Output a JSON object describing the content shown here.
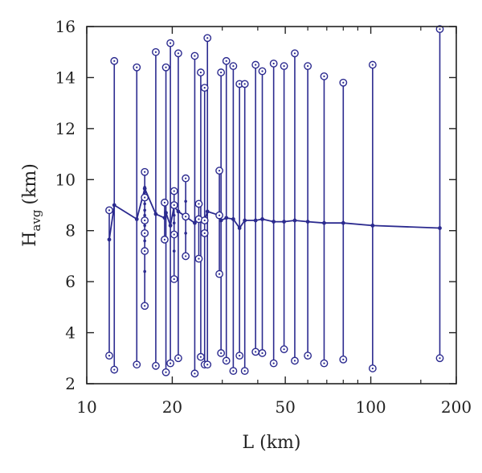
{
  "chart_data": {
    "type": "line",
    "xlabel": "L (km)",
    "ylabel": {
      "main": "H",
      "sub": "avg",
      "unit": "(km)"
    },
    "x_scale": "log",
    "xlim": [
      10,
      200
    ],
    "ylim": [
      2,
      16
    ],
    "x_ticks": [
      10,
      20,
      50,
      100,
      200
    ],
    "y_ticks": [
      2,
      4,
      6,
      8,
      10,
      12,
      14,
      16
    ],
    "grid": false,
    "color": "#2b2a8f",
    "ranges": [
      {
        "x": 12.0,
        "min": 3.1,
        "max": 8.8,
        "mean": 7.65
      },
      {
        "x": 12.5,
        "min": 2.55,
        "max": 14.65,
        "mean": 9.0
      },
      {
        "x": 15.0,
        "min": 2.75,
        "max": 14.4,
        "mean": 8.45
      },
      {
        "x": 16.0,
        "min": 5.05,
        "max": 10.3,
        "mean": 9.65
      },
      {
        "x": 17.5,
        "min": 2.7,
        "max": 15.0,
        "mean": 8.65
      },
      {
        "x": 18.8,
        "min": 7.65,
        "max": 9.1,
        "mean": 8.5
      },
      {
        "x": 19.0,
        "min": 2.45,
        "max": 14.4,
        "mean": 8.7
      },
      {
        "x": 19.7,
        "min": 2.8,
        "max": 15.35,
        "mean": 8.2
      },
      {
        "x": 20.3,
        "min": 6.1,
        "max": 9.55,
        "mean": 8.95
      },
      {
        "x": 21.0,
        "min": 3.0,
        "max": 14.95,
        "mean": 8.75
      },
      {
        "x": 22.3,
        "min": 7.0,
        "max": 10.05,
        "mean": 8.55
      },
      {
        "x": 24.0,
        "min": 2.4,
        "max": 14.85,
        "mean": 8.3
      },
      {
        "x": 24.8,
        "min": 6.9,
        "max": 9.05,
        "mean": 8.45
      },
      {
        "x": 25.2,
        "min": 3.05,
        "max": 14.2,
        "mean": 8.4
      },
      {
        "x": 26.0,
        "min": 2.75,
        "max": 13.6,
        "mean": 8.4
      },
      {
        "x": 26.6,
        "min": 2.75,
        "max": 15.55,
        "mean": 8.75
      },
      {
        "x": 29.3,
        "min": 6.3,
        "max": 10.35,
        "mean": 8.6
      },
      {
        "x": 29.7,
        "min": 3.2,
        "max": 14.2,
        "mean": 8.4
      },
      {
        "x": 31.0,
        "min": 2.9,
        "max": 14.65,
        "mean": 8.5
      },
      {
        "x": 32.8,
        "min": 2.5,
        "max": 14.45,
        "mean": 8.45
      },
      {
        "x": 34.5,
        "min": 3.1,
        "max": 13.75,
        "mean": 8.1
      },
      {
        "x": 36.0,
        "min": 2.5,
        "max": 13.75,
        "mean": 8.4
      },
      {
        "x": 39.3,
        "min": 3.25,
        "max": 14.5,
        "mean": 8.4
      },
      {
        "x": 41.5,
        "min": 3.2,
        "max": 14.25,
        "mean": 8.45
      },
      {
        "x": 45.5,
        "min": 2.8,
        "max": 14.55,
        "mean": 8.35
      },
      {
        "x": 49.5,
        "min": 3.35,
        "max": 14.45,
        "mean": 8.35
      },
      {
        "x": 54.0,
        "min": 2.9,
        "max": 14.95,
        "mean": 8.4
      },
      {
        "x": 60.0,
        "min": 3.1,
        "max": 14.45,
        "mean": 8.35
      },
      {
        "x": 68.5,
        "min": 2.8,
        "max": 14.05,
        "mean": 8.3
      },
      {
        "x": 80.0,
        "min": 2.95,
        "max": 13.8,
        "mean": 8.3
      },
      {
        "x": 101.5,
        "min": 2.6,
        "max": 14.5,
        "mean": 8.2
      },
      {
        "x": 175.0,
        "min": 3.0,
        "max": 15.9,
        "mean": 8.1
      }
    ],
    "inner_points": [
      {
        "x": 16.0,
        "values": [
          5.05,
          6.4,
          7.2,
          7.6,
          7.9,
          8.2,
          8.4,
          8.6,
          8.8,
          9.05,
          9.3,
          9.5,
          9.7,
          10.3
        ]
      },
      {
        "x": 18.8,
        "values": [
          7.65,
          8.5,
          9.1
        ]
      },
      {
        "x": 20.3,
        "values": [
          6.1,
          7.2,
          7.85,
          8.3,
          8.6,
          9.0,
          9.55
        ]
      },
      {
        "x": 22.3,
        "values": [
          7.0,
          7.9,
          8.55,
          9.15,
          10.05
        ]
      },
      {
        "x": 24.8,
        "values": [
          6.9,
          8.45,
          9.05
        ]
      },
      {
        "x": 26.0,
        "values": [
          2.75,
          7.9,
          8.4,
          13.6
        ]
      },
      {
        "x": 29.3,
        "values": [
          6.3,
          8.6,
          10.35
        ]
      }
    ]
  }
}
